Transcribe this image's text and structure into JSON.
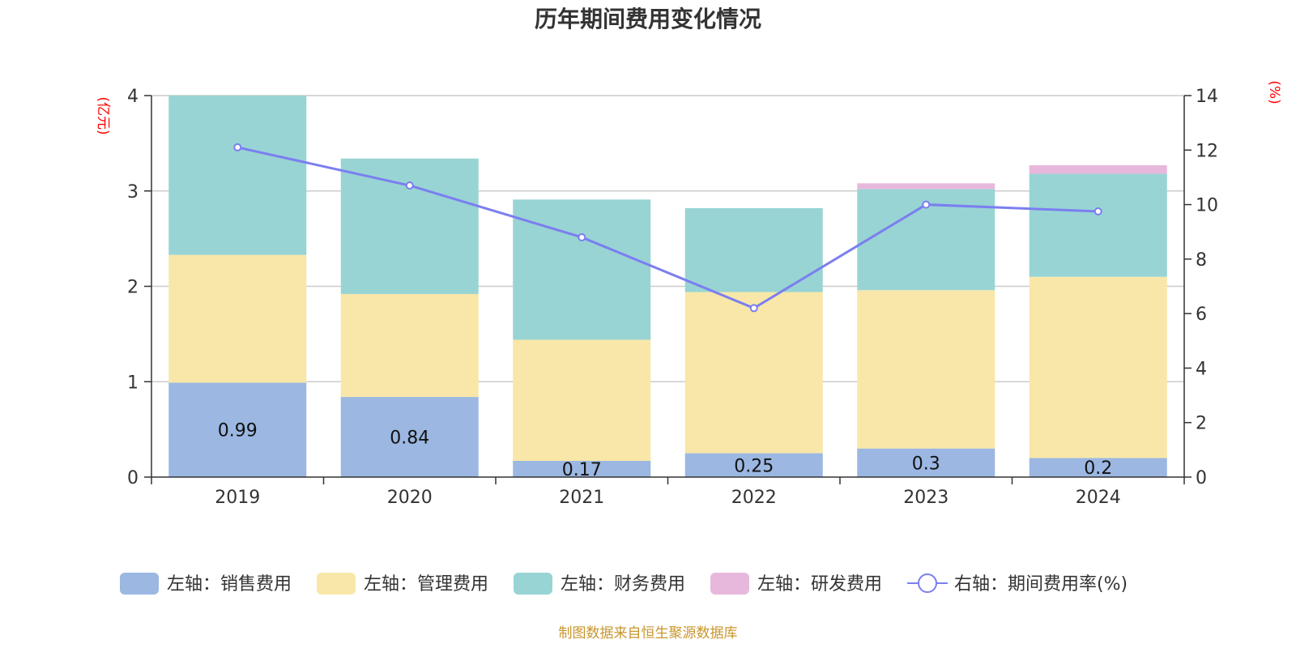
{
  "chart_data": {
    "type": "bar",
    "stacked": true,
    "title": "历年期间费用变化情况",
    "categories": [
      "2019",
      "2020",
      "2021",
      "2022",
      "2023",
      "2024"
    ],
    "y_left": {
      "unit": "(亿元)",
      "range": [
        0,
        4
      ],
      "ticks": [
        "0",
        "1",
        "2",
        "3",
        "4"
      ]
    },
    "y_right": {
      "unit": "(%)",
      "range": [
        0,
        14
      ],
      "ticks": [
        "0",
        "2",
        "4",
        "6",
        "8",
        "10",
        "12",
        "14"
      ]
    },
    "grid": true,
    "legend_position": "bottom",
    "series": [
      {
        "name": "左轴：销售费用",
        "axis": "left",
        "type": "bar",
        "color": "#9bb7e2",
        "values": [
          0.99,
          0.84,
          0.17,
          0.25,
          0.3,
          0.2
        ],
        "labels": [
          "0.99",
          "0.84",
          "0.17",
          "0.25",
          "0.3",
          "0.2"
        ]
      },
      {
        "name": "左轴：管理费用",
        "axis": "left",
        "type": "bar",
        "color": "#f8e7a8",
        "values": [
          1.34,
          1.08,
          1.27,
          1.69,
          1.66,
          1.9
        ]
      },
      {
        "name": "左轴：财务费用",
        "axis": "left",
        "type": "bar",
        "color": "#98d4d4",
        "values": [
          1.67,
          1.42,
          1.47,
          0.88,
          1.06,
          1.08
        ]
      },
      {
        "name": "左轴：研发费用",
        "axis": "left",
        "type": "bar",
        "color": "#e8b8dc",
        "values": [
          0,
          0,
          0,
          0,
          0.06,
          0.09
        ]
      },
      {
        "name": "右轴：期间费用率(%)",
        "axis": "right",
        "type": "line",
        "color": "#7b7ef0",
        "values": [
          12.1,
          10.7,
          8.8,
          6.2,
          10.0,
          9.75
        ]
      }
    ],
    "source": "制图数据来自恒生聚源数据库"
  }
}
